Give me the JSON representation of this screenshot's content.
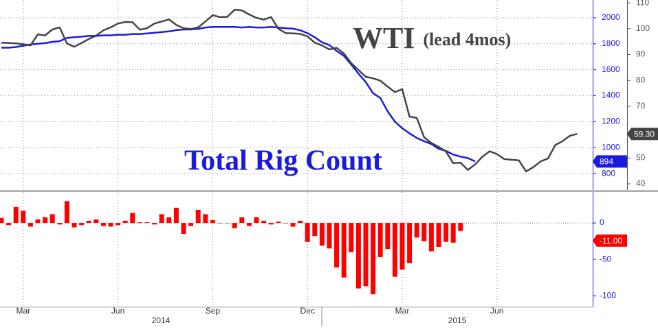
{
  "chart_data": [
    {
      "type": "line",
      "annotation": "(lead 4mos)",
      "ylim": [
        674,
        2137
      ],
      "yticks": [
        800,
        1000,
        1200,
        1400,
        1600,
        1800,
        2000
      ],
      "y2lim": [
        37.6,
        111.1
      ],
      "y2ticks": [
        40,
        50,
        60,
        70,
        80,
        90,
        100,
        110
      ],
      "grid": true,
      "series": [
        {
          "name": "Total Rig Count",
          "color": "#1a1ae0",
          "axis": "y",
          "values": [
            1770,
            1770,
            1775,
            1785,
            1795,
            1800,
            1805,
            1815,
            1820,
            1845,
            1850,
            1855,
            1860,
            1860,
            1865,
            1865,
            1870,
            1870,
            1875,
            1875,
            1880,
            1885,
            1890,
            1895,
            1905,
            1910,
            1910,
            1915,
            1925,
            1930,
            1930,
            1930,
            1930,
            1925,
            1930,
            1925,
            1925,
            1930,
            1925,
            1920,
            1917,
            1904,
            1882,
            1850,
            1811,
            1790,
            1745,
            1707,
            1640,
            1570,
            1505,
            1420,
            1383,
            1280,
            1200,
            1150,
            1110,
            1075,
            1050,
            1028,
            992,
            975,
            947,
            931,
            920,
            894,
            null,
            null,
            null,
            null,
            null,
            null,
            null,
            null,
            null,
            null,
            null,
            null,
            null,
            null
          ]
        },
        {
          "name": "WTI",
          "color": "#444444",
          "axis": "y2",
          "values": [
            94.6,
            94.5,
            94.3,
            94,
            93.5,
            97.8,
            97.4,
            99.7,
            100.5,
            94.3,
            93,
            94.5,
            96,
            97.3,
            99.4,
            100.5,
            102,
            102.6,
            102.5,
            99.6,
            100.2,
            102,
            102.8,
            103.6,
            101.5,
            100.2,
            99.9,
            100.5,
            102.8,
            105.2,
            104.5,
            104.6,
            107.3,
            107.1,
            105.5,
            104.2,
            103.5,
            104.5,
            100,
            98.3,
            98.2,
            98,
            97,
            94.6,
            93.5,
            92,
            92.6,
            90.4,
            86.7,
            84,
            81.4,
            80.8,
            79.9,
            77.6,
            75.5,
            76.6,
            66,
            65.5,
            58,
            55.8,
            54.3,
            52.5,
            48,
            48.2,
            45.4,
            47.5,
            50.5,
            52.6,
            51.5,
            49.6,
            49.3,
            49.1,
            44.8,
            46.5,
            48.7,
            49.8,
            55,
            56.5,
            58.6,
            59.3
          ],
          "value_labels": [
            null,
            null,
            null,
            null,
            null,
            null,
            null,
            null,
            null,
            null,
            null,
            null,
            null,
            null,
            null,
            null,
            null,
            null,
            null,
            null,
            null,
            null,
            null,
            null,
            null,
            null,
            null,
            null,
            null,
            null,
            null,
            null,
            null,
            null,
            null,
            null,
            null,
            null,
            null,
            null,
            null,
            null,
            null,
            null,
            null,
            null,
            null,
            null,
            null,
            null,
            null,
            null,
            null,
            null,
            null,
            null,
            null,
            null,
            null,
            null,
            null,
            null,
            null,
            null,
            null,
            null,
            null,
            null,
            null,
            null,
            null,
            null,
            null,
            null,
            null,
            null,
            null,
            null,
            null,
            "59.30"
          ]
        }
      ]
    },
    {
      "type": "bar",
      "color": "#ff0000",
      "categories": [
        null,
        null,
        null,
        "Mar",
        null,
        null,
        null,
        null,
        null,
        null,
        null,
        null,
        null,
        null,
        null,
        null,
        "Jun",
        null,
        null,
        null,
        null,
        null,
        null,
        null,
        null,
        null,
        null,
        null,
        null,
        "Sep",
        null,
        null,
        null,
        null,
        null,
        null,
        null,
        null,
        null,
        null,
        null,
        null,
        "Dec",
        null,
        null,
        null,
        null,
        null,
        null,
        null,
        null,
        null,
        null,
        null,
        null,
        "Mar",
        null,
        null,
        null,
        null,
        null,
        null,
        null,
        null,
        null,
        null,
        null,
        null,
        "Jun",
        null,
        null,
        null,
        null,
        null,
        null,
        null,
        null,
        null,
        null,
        null
      ],
      "year_labels": [
        "2014",
        "2015"
      ],
      "ylim": [
        -115,
        42.5
      ],
      "yticks": [
        0,
        -50,
        -100
      ],
      "values": [
        7,
        -3,
        22,
        17,
        -5,
        5,
        8,
        12,
        -2,
        30,
        -6,
        -3,
        3,
        5,
        -4,
        -5,
        -3,
        3,
        14,
        1,
        1,
        -2,
        12,
        8,
        21,
        -15,
        -4,
        18,
        12,
        4,
        0,
        0,
        -7,
        8,
        -4,
        8,
        3,
        -2,
        2,
        0,
        -5,
        3,
        -26,
        -18,
        -31,
        -35,
        -61,
        -75,
        -40,
        -90,
        -87,
        -98,
        -47,
        -36,
        -74,
        -64,
        -55,
        -20,
        -25,
        -39,
        -33,
        -26,
        -27,
        -11,
        null,
        null,
        null,
        null,
        null,
        null,
        null,
        null,
        null,
        null,
        null,
        null,
        null,
        null,
        null,
        null
      ],
      "value_labels": [
        null,
        null,
        null,
        null,
        null,
        null,
        null,
        null,
        null,
        null,
        null,
        null,
        null,
        null,
        null,
        null,
        null,
        null,
        null,
        null,
        null,
        null,
        null,
        null,
        null,
        null,
        null,
        null,
        null,
        null,
        null,
        null,
        null,
        null,
        null,
        null,
        null,
        null,
        null,
        null,
        null,
        null,
        null,
        null,
        null,
        null,
        null,
        null,
        null,
        null,
        null,
        null,
        null,
        null,
        null,
        null,
        null,
        null,
        null,
        null,
        null,
        null,
        null,
        "-11.00",
        null,
        null,
        null,
        null,
        null,
        null,
        null,
        null,
        null,
        null,
        null,
        null,
        null,
        null,
        null,
        null
      ]
    }
  ]
}
